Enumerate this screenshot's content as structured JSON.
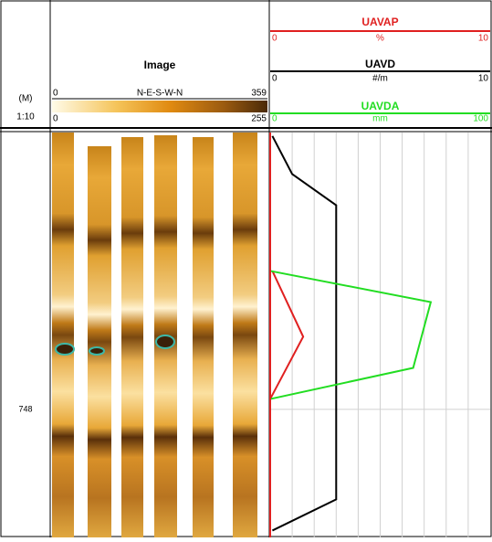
{
  "header": {
    "depth_unit": "(M)",
    "scale": "1:10",
    "image_title": "Image",
    "orientation": "N-E-S-W-N",
    "azimuth_range": [
      0,
      359
    ],
    "color_range": [
      0,
      255
    ]
  },
  "chart_data": {
    "type": "line",
    "orientation": "vertical",
    "ylim": [
      747.2,
      748.37
    ],
    "yticks": [
      748
    ],
    "grid_divisions": 10,
    "series": [
      {
        "name": "UAVAP",
        "unit": "%",
        "color": "#e02020",
        "xlim": [
          0,
          10
        ],
        "values": [
          0.1,
          1.5,
          0
        ],
        "depths": [
          747.6,
          747.79,
          747.97
        ]
      },
      {
        "name": "UAVD",
        "unit": "#/m",
        "color": "#000000",
        "xlim": [
          0,
          10
        ],
        "values": [
          0.1,
          1.0,
          3.0,
          3.0,
          0.1
        ],
        "depths": [
          747.21,
          747.32,
          747.41,
          748.26,
          748.35
        ]
      },
      {
        "name": "UAVDA",
        "unit": "mm",
        "color": "#22dd22",
        "xlim": [
          0,
          100
        ],
        "values": [
          0,
          73,
          65,
          0
        ],
        "depths": [
          747.6,
          747.69,
          747.88,
          747.97
        ]
      }
    ]
  }
}
